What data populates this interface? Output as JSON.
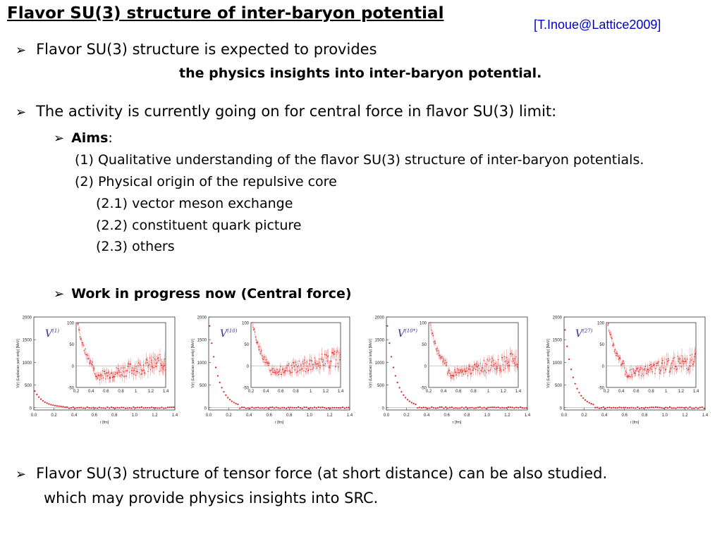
{
  "title": "Flavor SU(3) structure of inter-baryon potential",
  "citation": "[T.Inoue@Lattice2009]",
  "bullets": {
    "b1_text": "Flavor SU(3) structure is expected to provides",
    "b1_cont": "the physics insights into inter-baryon potential.",
    "b2_text": "The activity is currently going on for central force in flavor SU(3) limit:",
    "aims_label": "Aims",
    "aims_colon": ":",
    "aim1": "(1) Qualitative understanding of the flavor SU(3) structure of inter-baryon potentials.",
    "aim2": "(2) Physical origin of the repulsive core",
    "aim21": "(2.1) vector meson exchange",
    "aim22": "(2.2) constituent quark picture",
    "aim23": "(2.3) others",
    "wip": "Work in progress now (Central force)",
    "b3_line1": "Flavor SU(3) structure of tensor force (at short distance) can be also studied.",
    "b3_line2": "which may provide physics insights into SRC."
  },
  "arrow_glyph": "➢",
  "chart_data": [
    {
      "type": "scatter",
      "label_base": "V",
      "label_sup": "(1)",
      "ylabel": "V(r) (Laplacian part only) [MeV]",
      "xlabel": "r [fm]",
      "xlim": [
        0.0,
        1.4
      ],
      "ylim": [
        -50,
        2000
      ],
      "x_ticks": [
        "0.0",
        "0.2",
        "0.4",
        "0.6",
        "0.8",
        "1.0",
        "1.2",
        "1.4"
      ],
      "y_ticks": [
        "0",
        "500",
        "1000",
        "1500",
        "2000"
      ],
      "inset": {
        "xlim": [
          0.2,
          1.4
        ],
        "ylim": [
          -50,
          100
        ],
        "x_ticks": [
          "0.2",
          "0.4",
          "0.6",
          "0.8",
          "1",
          "1.2",
          "1.4"
        ],
        "y_ticks": [
          "-50",
          "0",
          "50",
          "100"
        ]
      },
      "color": "#e02020"
    },
    {
      "type": "scatter",
      "label_base": "V",
      "label_sup": "(10)",
      "ylabel": "V(r) (Laplacian part only) [MeV]",
      "xlabel": "r [fm]",
      "xlim": [
        0.0,
        1.4
      ],
      "ylim": [
        -50,
        2000
      ],
      "x_ticks": [
        "0.0",
        "0.2",
        "0.4",
        "0.6",
        "0.8",
        "1.0",
        "1.2",
        "1.4"
      ],
      "y_ticks": [
        "0",
        "500",
        "1000",
        "1500",
        "2000"
      ],
      "inset": {
        "xlim": [
          0.2,
          1.4
        ],
        "ylim": [
          -50,
          100
        ],
        "x_ticks": [
          "0.2",
          "0.4",
          "0.6",
          "0.8",
          "1",
          "1.2",
          "1.4"
        ],
        "y_ticks": [
          "-50",
          "0",
          "50",
          "100"
        ]
      },
      "color": "#e02020"
    },
    {
      "type": "scatter",
      "label_base": "V",
      "label_sup": "(10*)",
      "ylabel": "V(r) (Laplacian part only) [MeV]",
      "xlabel": "r [fm]",
      "xlim": [
        0.0,
        1.4
      ],
      "ylim": [
        -50,
        2000
      ],
      "x_ticks": [
        "0.0",
        "0.2",
        "0.4",
        "0.6",
        "0.8",
        "1.0",
        "1.2",
        "1.4"
      ],
      "y_ticks": [
        "0",
        "500",
        "1000",
        "1500",
        "2000"
      ],
      "inset": {
        "xlim": [
          0.2,
          1.4
        ],
        "ylim": [
          -50,
          100
        ],
        "x_ticks": [
          "0.2",
          "0.4",
          "0.6",
          "0.8",
          "1",
          "1.2",
          "1.4"
        ],
        "y_ticks": [
          "-50",
          "0",
          "50",
          "100"
        ]
      },
      "color": "#e02020"
    },
    {
      "type": "scatter",
      "label_base": "V",
      "label_sup": "(27)",
      "ylabel": "V(r) (Laplacian part only) [MeV]",
      "xlabel": "r [fm]",
      "xlim": [
        0.0,
        1.4
      ],
      "ylim": [
        -50,
        2000
      ],
      "x_ticks": [
        "0.0",
        "0.2",
        "0.4",
        "0.6",
        "0.8",
        "1.0",
        "1.2",
        "1.4"
      ],
      "y_ticks": [
        "0",
        "500",
        "1000",
        "1500",
        "2000"
      ],
      "inset": {
        "xlim": [
          0.2,
          1.4
        ],
        "ylim": [
          -50,
          100
        ],
        "x_ticks": [
          "0.2",
          "0.4",
          "0.6",
          "0.8",
          "1",
          "1.2",
          "1.4"
        ],
        "y_ticks": [
          "-50",
          "0",
          "50",
          "100"
        ]
      },
      "color": "#e02020"
    }
  ]
}
